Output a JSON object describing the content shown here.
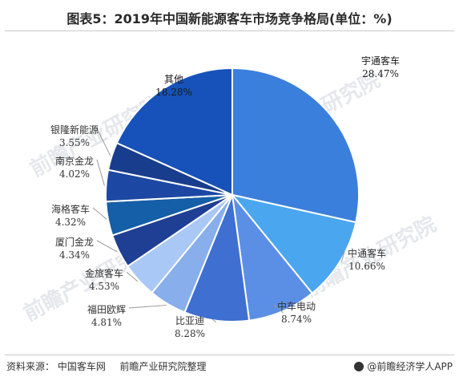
{
  "title": "图表5：2019年中国新能源客车市场竞争格局(单位：%)",
  "source": {
    "label": "资料来源：",
    "items": [
      "中国客车网",
      "前瞻产业研究院整理"
    ]
  },
  "brand": "@前瞻经济学人APP",
  "watermark": "前瞻产业研究院",
  "chart_data": {
    "type": "pie",
    "categories": [
      "宇通客车",
      "中通客车",
      "中车电动",
      "比亚迪",
      "福田欧辉",
      "金旅客车",
      "厦门金龙",
      "海格客车",
      "南京金龙",
      "银隆新能源",
      "其他"
    ],
    "values": [
      28.47,
      10.66,
      8.74,
      8.28,
      4.81,
      4.53,
      4.34,
      4.32,
      4.02,
      3.55,
      18.28
    ],
    "value_labels": [
      "28.47%",
      "10.66%",
      "8.74%",
      "8.28%",
      "4.81%",
      "4.53%",
      "4.34%",
      "4.32%",
      "4.02%",
      "3.55%",
      "18.28%"
    ],
    "colors": [
      "#3b7fdc",
      "#4aa6ef",
      "#5b8fe6",
      "#3e6fd1",
      "#88aeec",
      "#aac8f5",
      "#1f3f95",
      "#155ea8",
      "#1c48a3",
      "#183d8c",
      "#1652b9"
    ],
    "start_angle_deg": 0,
    "direction": "clockwise"
  }
}
